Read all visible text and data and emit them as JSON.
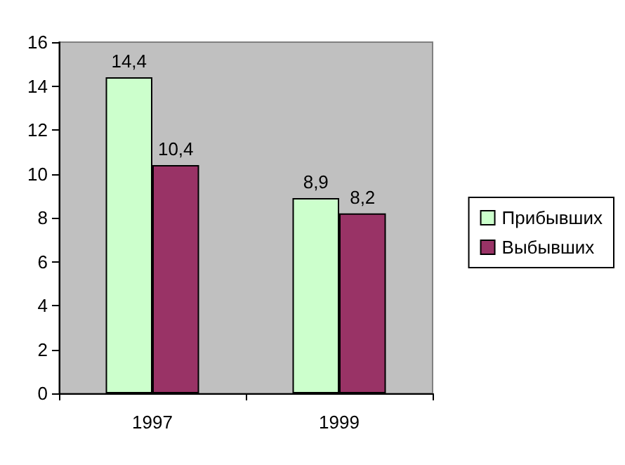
{
  "chart_data": {
    "type": "bar",
    "categories": [
      "1997",
      "1999"
    ],
    "series": [
      {
        "name": "Прибывших",
        "color": "#ccffcc",
        "values": [
          14.4,
          8.9
        ],
        "value_labels": [
          "14,4",
          "8,9"
        ]
      },
      {
        "name": "Выбывших",
        "color": "#993366",
        "values": [
          10.4,
          8.2
        ],
        "value_labels": [
          "10,4",
          "8,2"
        ]
      }
    ],
    "ylim": [
      0,
      16
    ],
    "yticks": [
      0,
      2,
      4,
      6,
      8,
      10,
      12,
      14,
      16
    ],
    "grid": false,
    "legend": "right"
  }
}
